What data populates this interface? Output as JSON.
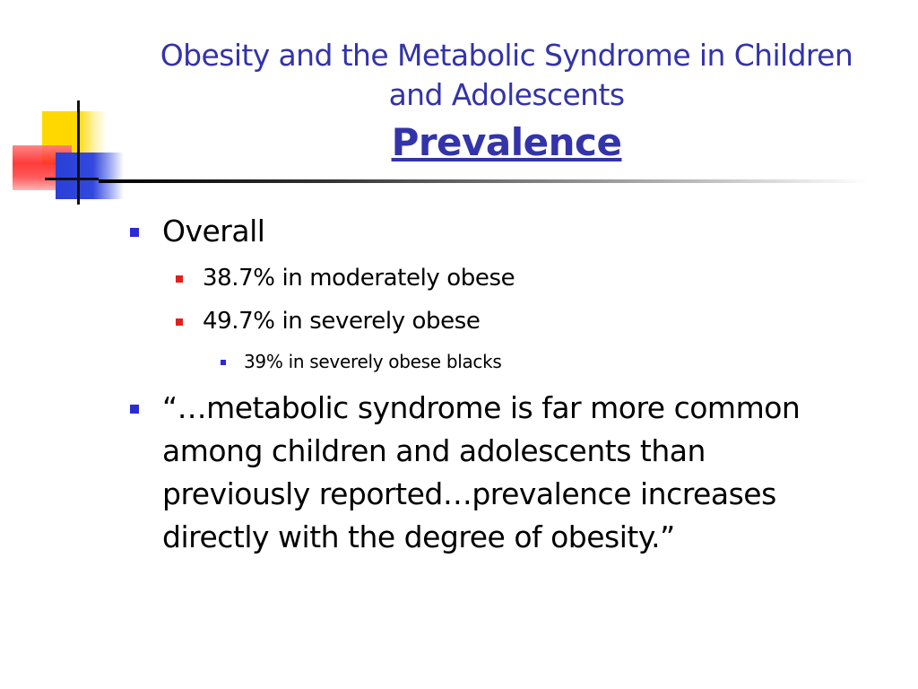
{
  "slide": {
    "title_line1": "Obesity and the Metabolic Syndrome in Children",
    "title_line2": "and Adolescents",
    "subtitle": "Prevalence"
  },
  "bullets": {
    "overall": "Overall",
    "moderately": "38.7% in moderately obese",
    "severely": "49.7% in severely obese",
    "blacks": "39% in severely obese blacks",
    "quote_line1": "“…metabolic syndrome is far more common",
    "quote_line2": "among children and adolescents than",
    "quote_line3": "previously reported…prevalence increases",
    "quote_line4": "directly with the degree of obesity.”"
  },
  "colors": {
    "title": "#3333aa",
    "bullet_level1": "#2b2bd6",
    "bullet_level2": "#e02020",
    "text": "#000000"
  }
}
